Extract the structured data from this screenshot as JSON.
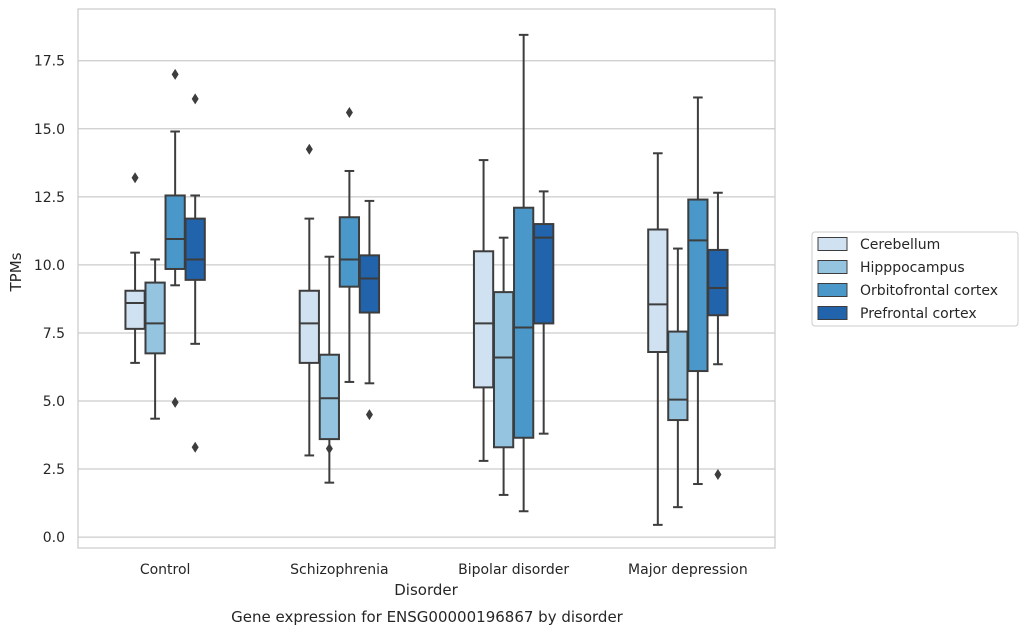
{
  "chart_data": {
    "type": "boxplot",
    "caption": "Gene expression for ENSG00000196867 by disorder",
    "xlabel": "Disorder",
    "ylabel": "TPMs",
    "ylim": [
      -0.4,
      19.4
    ],
    "yticks": [
      0.0,
      2.5,
      5.0,
      7.5,
      10.0,
      12.5,
      15.0,
      17.5
    ],
    "ytick_labels": [
      "0.0",
      "2.5",
      "5.0",
      "7.5",
      "10.0",
      "12.5",
      "15.0",
      "17.5"
    ],
    "grid": "horizontal",
    "legend_position": "right",
    "categories": [
      "Control",
      "Schizophrenia",
      "Bipolar disorder",
      "Major depression"
    ],
    "series": [
      {
        "name": "Cerebellum",
        "color": "#d0e1f2",
        "boxes": [
          {
            "whisker_low": 6.4,
            "q1": 7.65,
            "median": 8.6,
            "q3": 9.05,
            "whisker_high": 10.45,
            "outliers": [
              13.2
            ]
          },
          {
            "whisker_low": 3.0,
            "q1": 6.4,
            "median": 7.85,
            "q3": 9.05,
            "whisker_high": 11.7,
            "outliers": [
              14.25
            ]
          },
          {
            "whisker_low": 2.8,
            "q1": 5.5,
            "median": 7.85,
            "q3": 10.5,
            "whisker_high": 13.85,
            "outliers": []
          },
          {
            "whisker_low": 0.45,
            "q1": 6.8,
            "median": 8.55,
            "q3": 11.3,
            "whisker_high": 14.1,
            "outliers": []
          }
        ]
      },
      {
        "name": "Hipppocampus",
        "color": "#94c4df",
        "boxes": [
          {
            "whisker_low": 4.35,
            "q1": 6.75,
            "median": 7.85,
            "q3": 9.35,
            "whisker_high": 10.2,
            "outliers": []
          },
          {
            "whisker_low": 2.0,
            "q1": 3.6,
            "median": 5.1,
            "q3": 6.7,
            "whisker_high": 10.3,
            "outliers": [
              3.25
            ]
          },
          {
            "whisker_low": 1.55,
            "q1": 3.3,
            "median": 6.6,
            "q3": 9.0,
            "whisker_high": 11.0,
            "outliers": []
          },
          {
            "whisker_low": 1.1,
            "q1": 4.3,
            "median": 5.05,
            "q3": 7.55,
            "whisker_high": 10.6,
            "outliers": []
          }
        ]
      },
      {
        "name": "Orbitofrontal cortex",
        "color": "#4a98c9",
        "boxes": [
          {
            "whisker_low": 9.25,
            "q1": 9.85,
            "median": 10.95,
            "q3": 12.55,
            "whisker_high": 14.9,
            "outliers": [
              17.0,
              4.95
            ]
          },
          {
            "whisker_low": 5.7,
            "q1": 9.2,
            "median": 10.2,
            "q3": 11.75,
            "whisker_high": 13.45,
            "outliers": [
              15.6
            ]
          },
          {
            "whisker_low": 0.95,
            "q1": 3.65,
            "median": 7.7,
            "q3": 12.1,
            "whisker_high": 18.45,
            "outliers": []
          },
          {
            "whisker_low": 1.95,
            "q1": 6.1,
            "median": 10.9,
            "q3": 12.4,
            "whisker_high": 16.15,
            "outliers": []
          }
        ]
      },
      {
        "name": "Prefrontal cortex",
        "color": "#2164ab",
        "boxes": [
          {
            "whisker_low": 7.1,
            "q1": 9.45,
            "median": 10.2,
            "q3": 11.7,
            "whisker_high": 12.55,
            "outliers": [
              16.1,
              3.3
            ]
          },
          {
            "whisker_low": 5.65,
            "q1": 8.25,
            "median": 9.5,
            "q3": 10.35,
            "whisker_high": 12.35,
            "outliers": [
              4.5
            ]
          },
          {
            "whisker_low": 3.8,
            "q1": 7.85,
            "median": 11.0,
            "q3": 11.5,
            "whisker_high": 12.7,
            "outliers": []
          },
          {
            "whisker_low": 6.35,
            "q1": 8.15,
            "median": 9.15,
            "q3": 10.55,
            "whisker_high": 12.65,
            "outliers": [
              2.3
            ]
          }
        ]
      }
    ]
  }
}
